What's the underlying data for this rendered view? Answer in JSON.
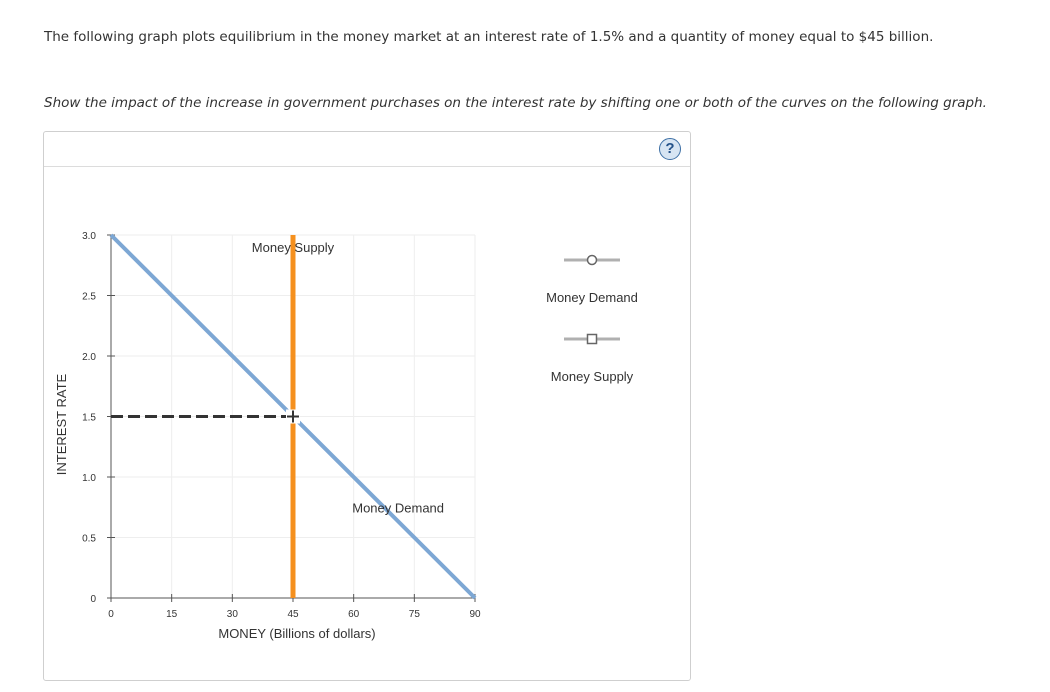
{
  "question": {
    "intro": "The following graph plots equilibrium in the money market at an interest rate of 1.5% and a quantity of money equal to $45 billion.",
    "instruction": "Show the impact of the increase in government purchases on the interest rate by shifting one or both of the curves on the following graph."
  },
  "help_button": {
    "label": "?"
  },
  "legend": {
    "items": [
      {
        "label": "Money Demand",
        "marker": "circle",
        "color": "#b0b0b0"
      },
      {
        "label": "Money Supply",
        "marker": "square",
        "color": "#b0b0b0"
      }
    ]
  },
  "chart_data": {
    "type": "line",
    "xlabel": "MONEY (Billions of dollars)",
    "ylabel": "INTEREST RATE",
    "xlim": [
      0,
      90
    ],
    "ylim": [
      0,
      3.0
    ],
    "x_ticks": [
      0,
      15,
      30,
      45,
      60,
      75,
      90
    ],
    "y_ticks": [
      0,
      0.5,
      1.0,
      1.5,
      2.0,
      2.5,
      3.0
    ],
    "x_tick_labels": [
      "0",
      "15",
      "30",
      "45",
      "60",
      "75",
      "90"
    ],
    "y_tick_labels": [
      "0",
      "0.5",
      "1.0",
      "1.5",
      "2.0",
      "2.5",
      "3.0"
    ],
    "grid": true,
    "series": [
      {
        "name": "Money Demand",
        "color": "#7da7d4",
        "x": [
          0,
          90
        ],
        "y": [
          3.0,
          0
        ]
      },
      {
        "name": "Money Supply",
        "color": "#f5901e",
        "x": [
          45,
          45
        ],
        "y": [
          3.0,
          0
        ]
      }
    ],
    "curve_labels": [
      {
        "text": "Money Supply",
        "x": 45,
        "y": 2.9
      },
      {
        "text": "Money Demand",
        "x": 71,
        "y": 0.75
      }
    ],
    "equilibrium": {
      "x": 45,
      "y": 1.5,
      "line_color": "#333333"
    }
  }
}
